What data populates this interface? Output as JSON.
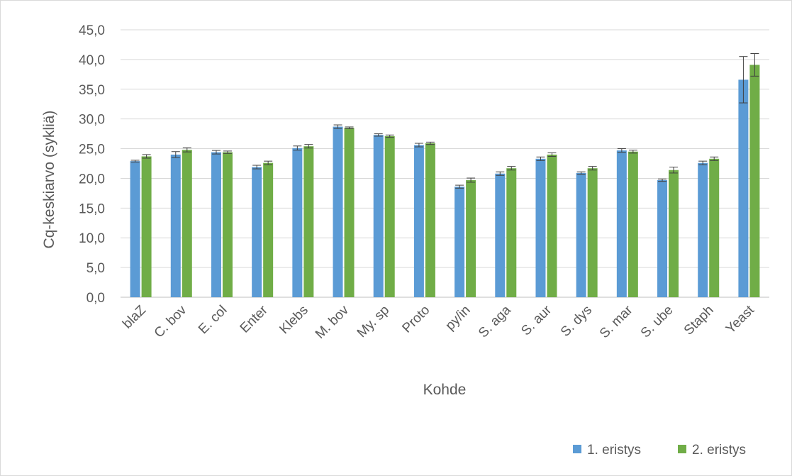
{
  "chart_data": {
    "type": "bar",
    "xlabel": "Kohde",
    "ylabel": "Cq-keskiarvo (sykliä)",
    "ylim": [
      0,
      45
    ],
    "yticks": [
      "0,0",
      "5,0",
      "10,0",
      "15,0",
      "20,0",
      "25,0",
      "30,0",
      "35,0",
      "40,0",
      "45,0"
    ],
    "grid": true,
    "legend_position": "bottom-right",
    "categories": [
      "blaZ",
      "C. bov",
      "E. col",
      "Enter",
      "Klebs",
      "M. bov",
      "My. sp",
      "Proto",
      "py/in",
      "S. aga",
      "S. aur",
      "S. dys",
      "S. mar",
      "S. ube",
      "Staph",
      "Yeast"
    ],
    "series": [
      {
        "name": "1. eristys",
        "color": "#5b9bd5",
        "values": [
          22.9,
          24.0,
          24.4,
          21.9,
          25.1,
          28.7,
          27.3,
          25.6,
          18.6,
          20.8,
          23.3,
          20.9,
          24.7,
          19.7,
          22.6,
          36.6
        ],
        "errors": [
          0.15,
          0.5,
          0.3,
          0.3,
          0.35,
          0.3,
          0.2,
          0.3,
          0.25,
          0.3,
          0.3,
          0.2,
          0.3,
          0.2,
          0.3,
          3.9
        ]
      },
      {
        "name": "2. eristys",
        "color": "#70ad47",
        "values": [
          23.7,
          24.8,
          24.4,
          22.6,
          25.4,
          28.5,
          27.1,
          25.9,
          19.7,
          21.7,
          24.0,
          21.7,
          24.5,
          21.4,
          23.3,
          39.1
        ],
        "errors": [
          0.3,
          0.35,
          0.2,
          0.3,
          0.3,
          0.15,
          0.2,
          0.2,
          0.35,
          0.3,
          0.3,
          0.3,
          0.25,
          0.5,
          0.3,
          1.9
        ]
      }
    ]
  }
}
